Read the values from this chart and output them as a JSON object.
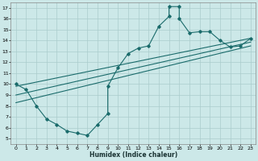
{
  "background_color": "#cce8e8",
  "grid_color": "#aacccc",
  "line_color": "#1a6b6b",
  "xlabel": "Humidex (Indice chaleur)",
  "xlim": [
    -0.5,
    23.5
  ],
  "ylim": [
    4.5,
    17.5
  ],
  "xticks": [
    0,
    1,
    2,
    3,
    4,
    5,
    6,
    7,
    8,
    9,
    10,
    11,
    12,
    13,
    14,
    15,
    16,
    17,
    18,
    19,
    20,
    21,
    22,
    23
  ],
  "yticks": [
    5,
    6,
    7,
    8,
    9,
    10,
    11,
    12,
    13,
    14,
    15,
    16,
    17
  ],
  "curve_x": [
    0,
    1,
    2,
    3,
    4,
    5,
    6,
    7,
    8,
    9,
    9,
    10,
    11,
    12,
    13,
    14,
    15,
    15,
    16,
    16,
    17,
    18,
    19,
    20,
    21,
    22,
    23
  ],
  "curve_y": [
    10.0,
    9.5,
    8.0,
    6.8,
    6.3,
    5.7,
    5.5,
    5.3,
    6.3,
    7.3,
    9.8,
    11.5,
    12.8,
    13.3,
    13.5,
    15.3,
    16.2,
    17.1,
    17.1,
    16.0,
    14.7,
    14.8,
    14.8,
    14.0,
    13.4,
    13.5,
    14.2
  ],
  "line1_x": [
    0,
    23
  ],
  "line1_y": [
    9.8,
    14.2
  ],
  "line2_x": [
    0,
    23
  ],
  "line2_y": [
    8.3,
    13.5
  ],
  "line3_x": [
    0,
    23
  ],
  "line3_y": [
    9.0,
    13.85
  ]
}
